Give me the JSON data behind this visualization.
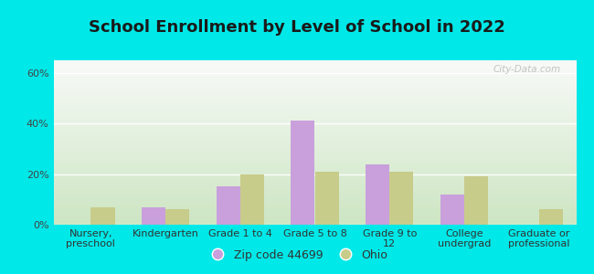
{
  "title": "School Enrollment by Level of School in 2022",
  "categories": [
    "Nursery,\npreschool",
    "Kindergarten",
    "Grade 1 to 4",
    "Grade 5 to 8",
    "Grade 9 to\n12",
    "College\nundergrad",
    "Graduate or\nprofessional"
  ],
  "zip_values": [
    0,
    7,
    15,
    41,
    24,
    12,
    0
  ],
  "ohio_values": [
    7,
    6,
    20,
    21,
    21,
    19,
    6
  ],
  "zip_color": "#c9a0dc",
  "ohio_color": "#c8cc8a",
  "ylim": [
    0,
    65
  ],
  "yticks": [
    0,
    20,
    40,
    60
  ],
  "ytick_labels": [
    "0%",
    "20%",
    "40%",
    "60%"
  ],
  "background_color": "#00e8e8",
  "watermark": "City-Data.com",
  "legend_zip": "Zip code 44699",
  "legend_ohio": "Ohio",
  "title_fontsize": 13,
  "tick_fontsize": 8
}
